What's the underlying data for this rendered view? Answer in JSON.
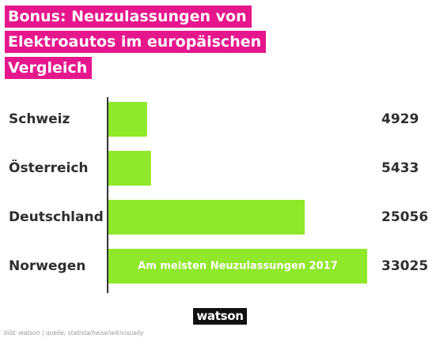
{
  "title_lines": [
    "Bonus: Neuzulassungen von",
    "Elektroautos im europäischen",
    "Vergleich"
  ],
  "chart_data": {
    "type": "bar",
    "orientation": "horizontal",
    "categories": [
      "Schweiz",
      "Österreich",
      "Deutschland",
      "Norwegen"
    ],
    "values": [
      4929,
      5433,
      25056,
      33025
    ],
    "value_labels": [
      "4929",
      "5433",
      "25056",
      "33025"
    ],
    "annotation": {
      "category": "Norwegen",
      "text": "Am meisten Neuzulassungen 2017"
    },
    "xlim": [
      0,
      33025
    ],
    "grid": false,
    "bar_color": "#8fe82a"
  },
  "colors": {
    "title_background": "#e6168c",
    "bar": "#8fe82a",
    "text": "#2f2f2f"
  },
  "logo_text": "watson",
  "source_text": "bild: watson | quelle; statista/heise/wikivisually"
}
